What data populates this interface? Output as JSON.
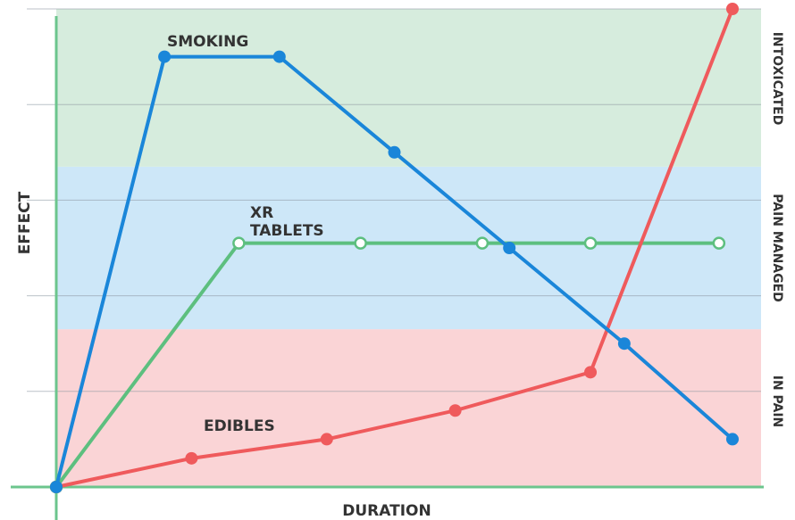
{
  "chart_data": {
    "type": "line",
    "title": "",
    "xlabel": "DURATION",
    "ylabel": "EFFECT",
    "xlim": [
      0,
      10
    ],
    "ylim": [
      0,
      10
    ],
    "grid": true,
    "bands": [
      {
        "label": "IN PAIN",
        "from": 0,
        "to": 3.3,
        "color": "#fad4d6"
      },
      {
        "label": "PAIN MANAGED",
        "from": 3.3,
        "to": 6.7,
        "color": "#cde7f8"
      },
      {
        "label": "INTOXICATED",
        "from": 6.7,
        "to": 10,
        "color": "#d6ecdd"
      }
    ],
    "series": [
      {
        "name": "SMOKING",
        "color": "#1a86d9",
        "marker": "filled",
        "x": [
          0,
          1.6,
          3.3,
          5.0,
          6.7,
          8.4,
          10.0
        ],
        "y": [
          0,
          9.0,
          9.0,
          7.0,
          5.0,
          3.0,
          1.0
        ]
      },
      {
        "name": "XR TABLETS",
        "color": "#5dbf7f",
        "marker": "open",
        "x": [
          0,
          2.7,
          4.5,
          6.3,
          7.9,
          9.8
        ],
        "y": [
          0,
          5.1,
          5.1,
          5.1,
          5.1,
          5.1
        ]
      },
      {
        "name": "EDIBLES",
        "color": "#ef5a5c",
        "marker": "filled",
        "x": [
          0,
          2.0,
          4.0,
          5.9,
          7.9,
          10.0
        ],
        "y": [
          0,
          0.6,
          1.0,
          1.6,
          2.4,
          10.0
        ]
      }
    ]
  }
}
